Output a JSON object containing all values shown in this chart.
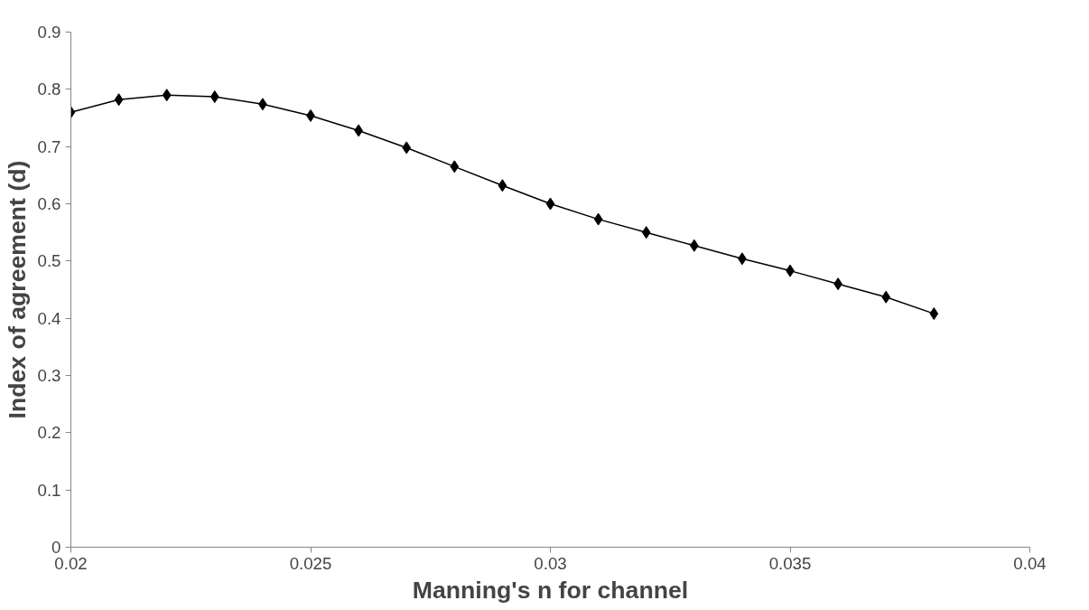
{
  "chart_data": {
    "type": "line",
    "xlabel": "Manning's n for channel",
    "ylabel": "Index of agreement (d)",
    "x": [
      0.02,
      0.021,
      0.022,
      0.023,
      0.024,
      0.025,
      0.026,
      0.027,
      0.028,
      0.029,
      0.03,
      0.031,
      0.032,
      0.033,
      0.034,
      0.035,
      0.036,
      0.037,
      0.038
    ],
    "series": [
      {
        "color": "#000000",
        "values": [
          0.76,
          0.782,
          0.79,
          0.787,
          0.774,
          0.754,
          0.728,
          0.698,
          0.665,
          0.632,
          0.6,
          0.573,
          0.55,
          0.527,
          0.504,
          0.483,
          0.46,
          0.437,
          0.408
        ]
      }
    ],
    "xlim": [
      0.02,
      0.04
    ],
    "xticks": [
      0.02,
      0.025,
      0.03,
      0.035,
      0.04
    ],
    "ylim": [
      0,
      0.9
    ],
    "yticks": [
      0,
      0.1,
      0.2,
      0.3,
      0.4,
      0.5,
      0.6,
      0.7,
      0.8,
      0.9
    ],
    "marker": "diamond",
    "line_style": "solid",
    "grid": false
  }
}
